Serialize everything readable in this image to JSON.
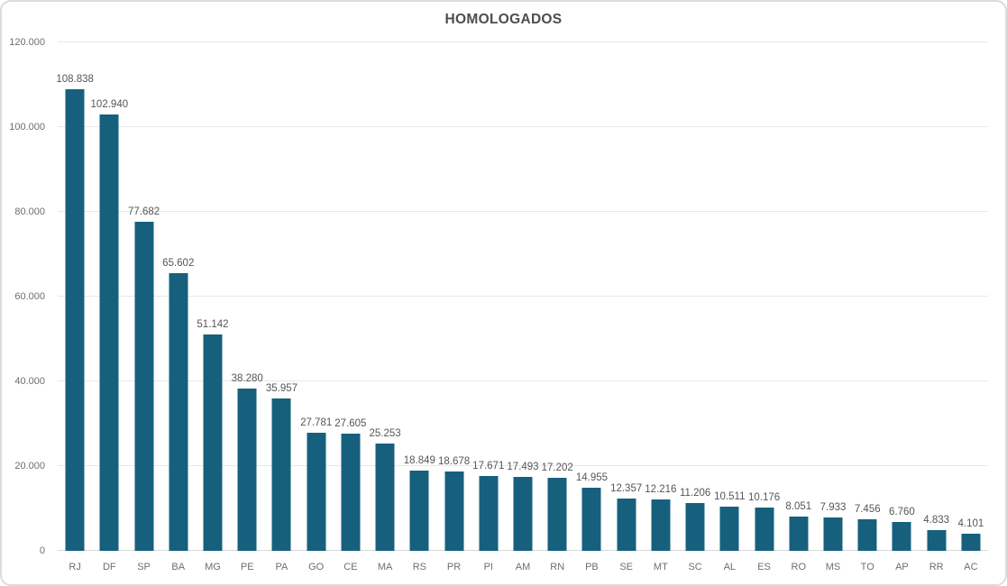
{
  "chart_data": {
    "type": "bar",
    "title": "HOMOLOGADOS",
    "categories": [
      "RJ",
      "DF",
      "SP",
      "BA",
      "MG",
      "PE",
      "PA",
      "GO",
      "CE",
      "MA",
      "RS",
      "PR",
      "PI",
      "AM",
      "RN",
      "PB",
      "SE",
      "MT",
      "SC",
      "AL",
      "ES",
      "RO",
      "MS",
      "TO",
      "AP",
      "RR",
      "AC"
    ],
    "values": [
      108838,
      102940,
      77682,
      65602,
      51142,
      38280,
      35957,
      27781,
      27605,
      25253,
      18849,
      18678,
      17671,
      17493,
      17202,
      14955,
      12357,
      12216,
      11206,
      10511,
      10176,
      8051,
      7933,
      7456,
      6760,
      4833,
      4101
    ],
    "value_labels": [
      "108.838",
      "102.940",
      "77.682",
      "65.602",
      "51.142",
      "38.280",
      "35.957",
      "27.781",
      "27.605",
      "25.253",
      "18.849",
      "18.678",
      "17.671",
      "17.493",
      "17.202",
      "14.955",
      "12.357",
      "12.216",
      "11.206",
      "10.511",
      "10.176",
      "8.051",
      "7.933",
      "7.456",
      "6.760",
      "4.833",
      "4.101"
    ],
    "xlabel": "",
    "ylabel": "",
    "ylim": [
      0,
      120000
    ],
    "ytick_values": [
      0,
      20000,
      40000,
      60000,
      80000,
      100000,
      120000
    ],
    "ytick_labels": [
      "0",
      "20.000",
      "40.000",
      "60.000",
      "80.000",
      "100.000",
      "120.000"
    ],
    "grid": true,
    "legend": false
  },
  "colors": {
    "bar": "#16607E",
    "grid": "#e8e8e8",
    "axis_line": "#d9d9d9",
    "axis_text": "#6e6e6e",
    "label_text": "#565656",
    "title_text": "#4d4d4d",
    "card_border": "#dcdcdc",
    "background": "#ffffff"
  }
}
